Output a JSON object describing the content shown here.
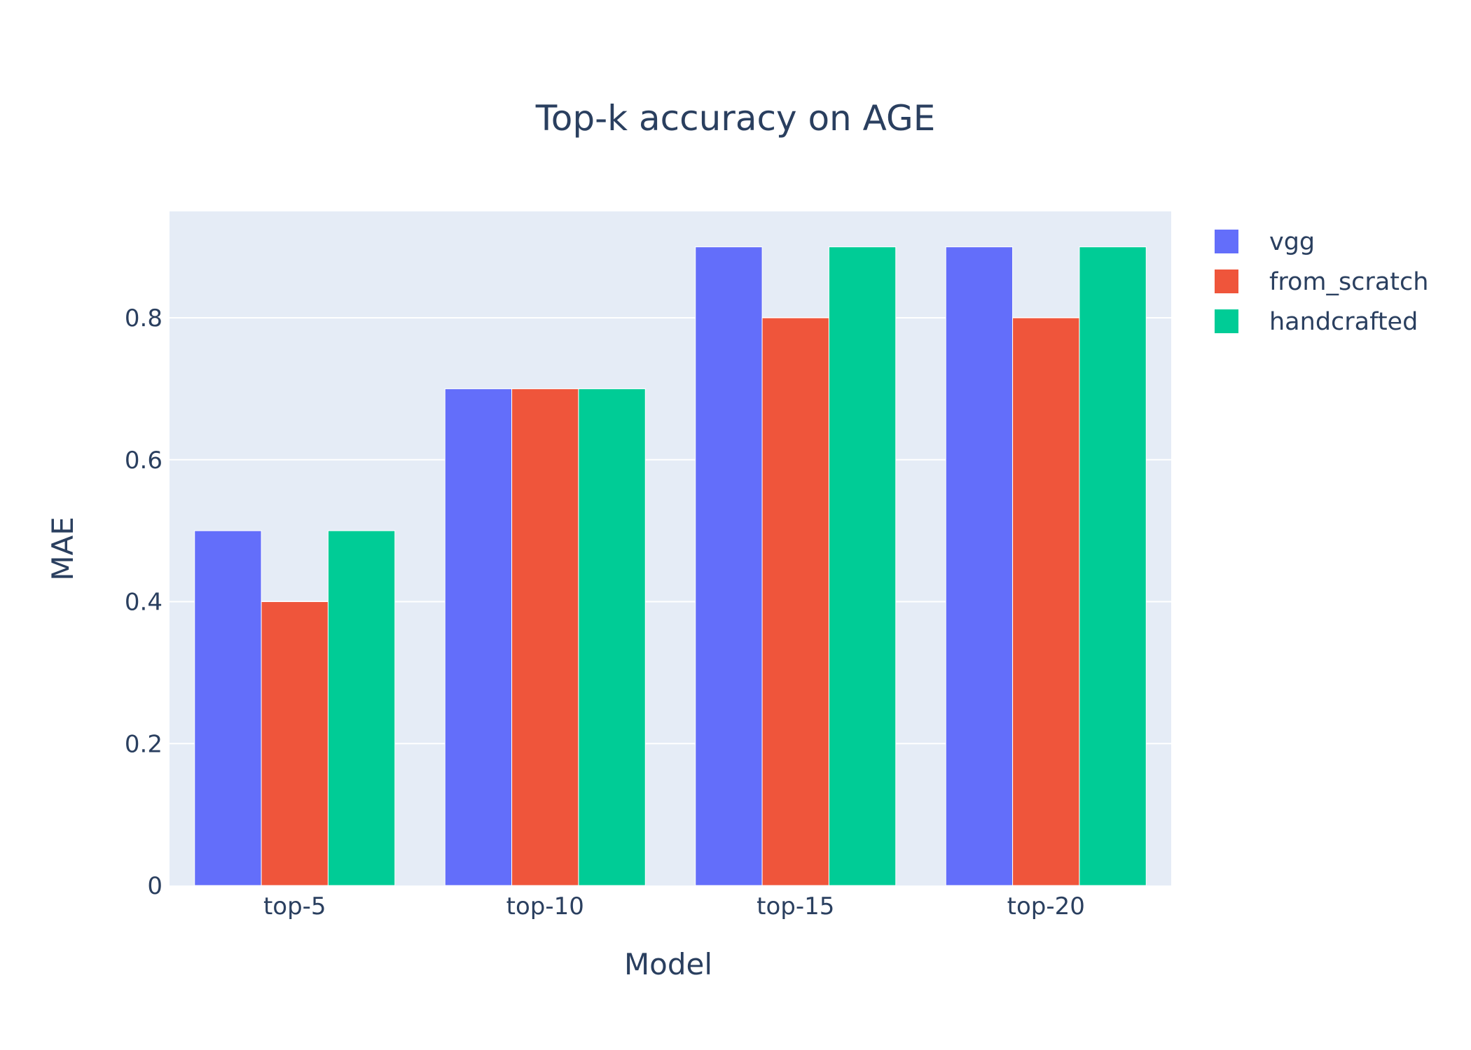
{
  "chart_data": {
    "type": "bar",
    "title": "Top-k accuracy on AGE",
    "xlabel": "Model",
    "ylabel": "MAE",
    "categories": [
      "top-5",
      "top-10",
      "top-15",
      "top-20"
    ],
    "series": [
      {
        "name": "vgg",
        "color": "#636efa",
        "values": [
          0.5,
          0.7,
          0.9,
          0.9
        ]
      },
      {
        "name": "from_scratch",
        "color": "#ef553b",
        "values": [
          0.4,
          0.7,
          0.8,
          0.8
        ]
      },
      {
        "name": "handcrafted",
        "color": "#00cc96",
        "values": [
          0.5,
          0.7,
          0.9,
          0.9
        ]
      }
    ],
    "ylim": [
      0,
      0.95
    ],
    "yticks": [
      0,
      0.2,
      0.4,
      0.6,
      0.8
    ],
    "ytick_labels": [
      "0",
      "0.2",
      "0.4",
      "0.6",
      "0.8"
    ],
    "grid": true,
    "legend_position": "top-right",
    "plot_background": "#e5ecf6"
  }
}
